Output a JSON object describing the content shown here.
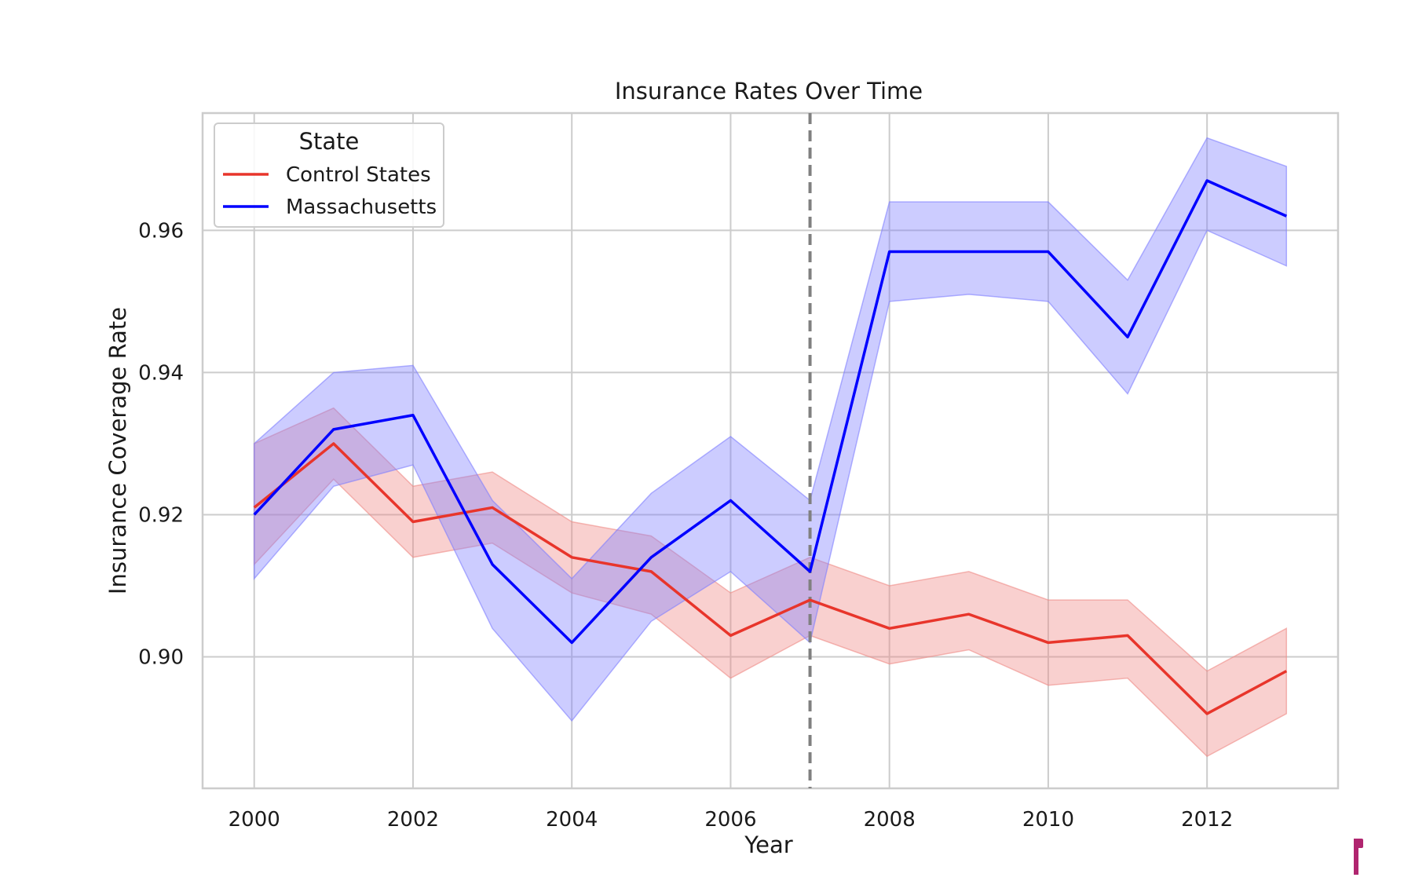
{
  "chart_data": {
    "type": "line",
    "title": "Insurance Rates Over Time",
    "xlabel": "Year",
    "ylabel": "Insurance Coverage Rate",
    "xlim": [
      1999.35,
      2013.65
    ],
    "ylim": [
      0.8815,
      0.9765
    ],
    "x_ticks": [
      2000,
      2002,
      2004,
      2006,
      2008,
      2010,
      2012
    ],
    "x_tick_labels": [
      "2000",
      "2002",
      "2004",
      "2006",
      "2008",
      "2010",
      "2012"
    ],
    "y_ticks": [
      0.9,
      0.92,
      0.94,
      0.96
    ],
    "y_tick_labels": [
      "0.90",
      "0.92",
      "0.94",
      "0.96"
    ],
    "grid": true,
    "legend": {
      "title": "State",
      "position": "top-left"
    },
    "vertical_line": {
      "x": 2007,
      "style": "dashed",
      "color": "#808080"
    },
    "x": [
      2000,
      2001,
      2002,
      2003,
      2004,
      2005,
      2006,
      2007,
      2008,
      2009,
      2010,
      2011,
      2012,
      2013
    ],
    "series": [
      {
        "name": "Control States",
        "color": "#e8352b",
        "band_color": "#ef8a86",
        "values": [
          0.921,
          0.93,
          0.919,
          0.921,
          0.914,
          0.912,
          0.903,
          0.908,
          0.904,
          0.906,
          0.902,
          0.903,
          0.892,
          0.898
        ],
        "lower": [
          0.913,
          0.925,
          0.914,
          0.916,
          0.909,
          0.906,
          0.897,
          0.903,
          0.899,
          0.901,
          0.896,
          0.897,
          0.886,
          0.892
        ],
        "upper": [
          0.93,
          0.935,
          0.924,
          0.926,
          0.919,
          0.917,
          0.909,
          0.914,
          0.91,
          0.912,
          0.908,
          0.908,
          0.898,
          0.904
        ]
      },
      {
        "name": "Massachusetts",
        "color": "#0000ff",
        "band_color": "#7f7fff",
        "values": [
          0.92,
          0.932,
          0.934,
          0.913,
          0.902,
          0.914,
          0.922,
          0.912,
          0.957,
          0.957,
          0.957,
          0.945,
          0.967,
          0.962
        ],
        "lower": [
          0.911,
          0.924,
          0.927,
          0.904,
          0.891,
          0.905,
          0.912,
          0.902,
          0.95,
          0.951,
          0.95,
          0.937,
          0.96,
          0.955
        ],
        "upper": [
          0.93,
          0.94,
          0.941,
          0.922,
          0.911,
          0.923,
          0.931,
          0.922,
          0.964,
          0.964,
          0.964,
          0.953,
          0.973,
          0.969
        ]
      }
    ]
  }
}
